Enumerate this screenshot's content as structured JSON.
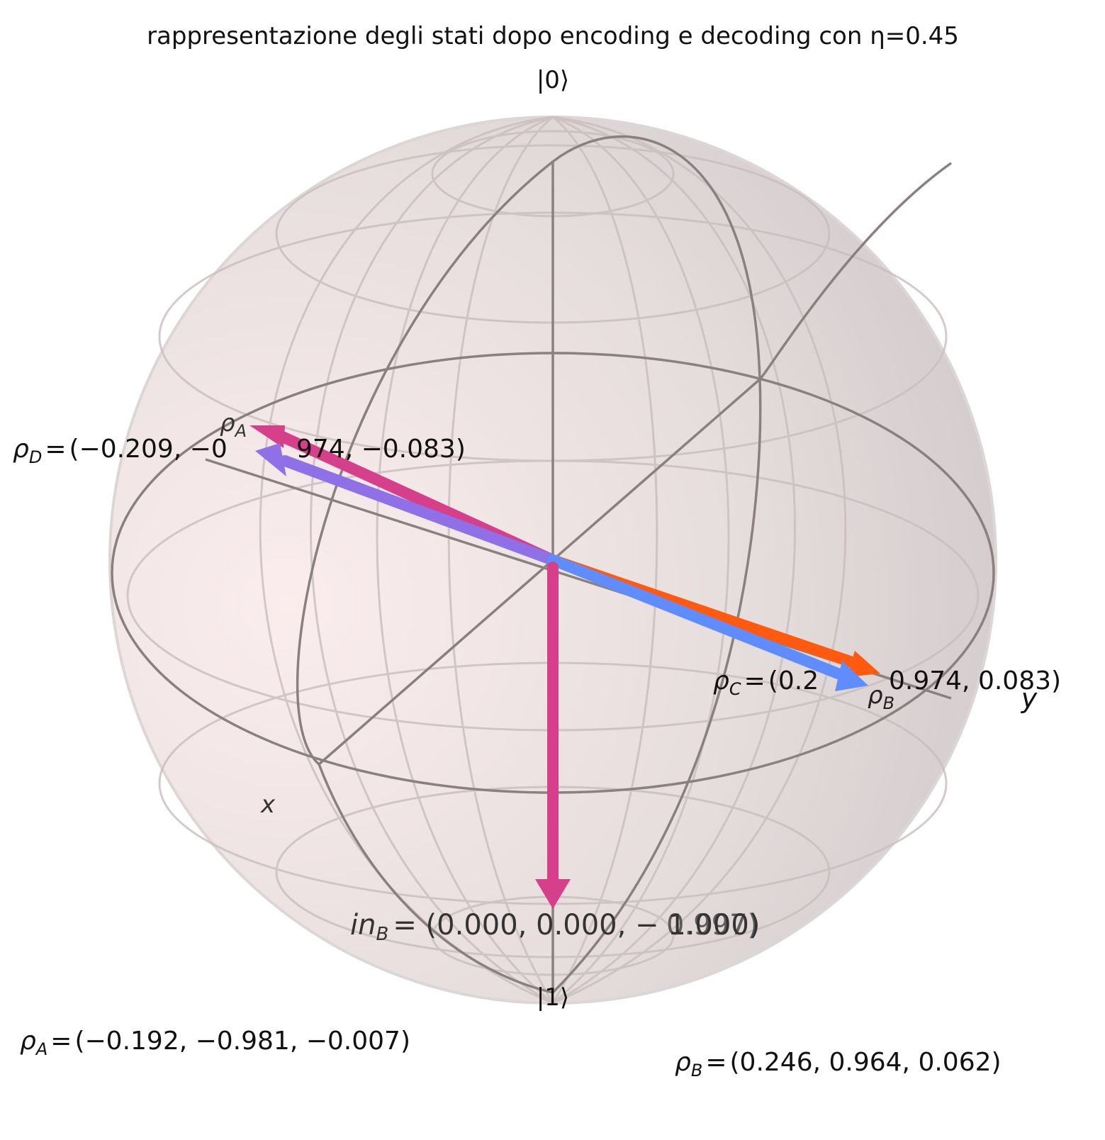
{
  "title": "rappresentazione degli stati dopo encoding e decoding con η=0.45",
  "axes": {
    "north_label": "|0⟩",
    "south_label": "|1⟩",
    "x_label": "x",
    "y_label": "y"
  },
  "colors": {
    "rho_A": "#d6408a",
    "rho_B": "#5f8dff",
    "rho_C": "#ff5a10",
    "rho_D": "#9070e6",
    "in": "#d6408a",
    "sphere_fill": "#e8dcdc",
    "wire": "#6e6666"
  },
  "vectors": [
    {
      "id": "rho_A",
      "symbol": "ρ",
      "sub": "A",
      "coords": "(−0.192, −0.981, −0.007)",
      "xyz": [
        -0.192,
        -0.981,
        -0.007
      ]
    },
    {
      "id": "rho_B",
      "symbol": "ρ",
      "sub": "B",
      "coords": "(0.246, 0.964, 0.062)",
      "xyz": [
        0.246,
        0.964,
        0.062
      ]
    },
    {
      "id": "rho_C",
      "symbol": "ρ",
      "sub": "C",
      "coords": "(0.2",
      "coords_tail": "0.974, 0.083)",
      "xyz": [
        0.209,
        0.974,
        0.083
      ]
    },
    {
      "id": "rho_D",
      "symbol": "ρ",
      "sub": "D",
      "coords": "(−0.209, −0",
      "coords_tail": "974, −0.083)",
      "xyz": [
        -0.209,
        -0.974,
        -0.083
      ]
    },
    {
      "id": "in",
      "symbol": "in",
      "sub": "A",
      "coords": "(0.000, 0.000, −1.000)",
      "xyz": [
        0.0,
        0.0,
        -1.0
      ]
    },
    {
      "id": "in",
      "symbol": "in",
      "sub": "B",
      "coords": "(0.000, 0.000, −0.997)",
      "xyz": [
        0.0,
        0.0,
        -0.997
      ]
    }
  ],
  "labels": {
    "rho_A_point": {
      "symbol": "ρ",
      "sub": "A"
    },
    "rho_B_point": {
      "symbol": "ρ",
      "sub": "B"
    },
    "rho_D": {
      "symbol": "ρ",
      "sub": "D",
      "eq": "=",
      "text": "(−0.209, −0",
      "tail": "974, −0.083)"
    },
    "rho_C": {
      "symbol": "ρ",
      "sub": "C",
      "eq": "=",
      "text": "(0.2",
      "tail": "0.974, 0.083)"
    },
    "in_overlap": {
      "symbol": "in",
      "sub": "B",
      "text": "= (0.000, 0.000, − 1.000)"
    },
    "in_overlap_2": {
      "text": "0.997)"
    },
    "rho_A_bottom": {
      "symbol": "ρ",
      "sub": "A",
      "eq": "=",
      "text": "(−0.192, −0.981, −0.007)"
    },
    "rho_B_bottom": {
      "symbol": "ρ",
      "sub": "B",
      "eq": "=",
      "text": "(0.246, 0.964, 0.062)"
    }
  }
}
